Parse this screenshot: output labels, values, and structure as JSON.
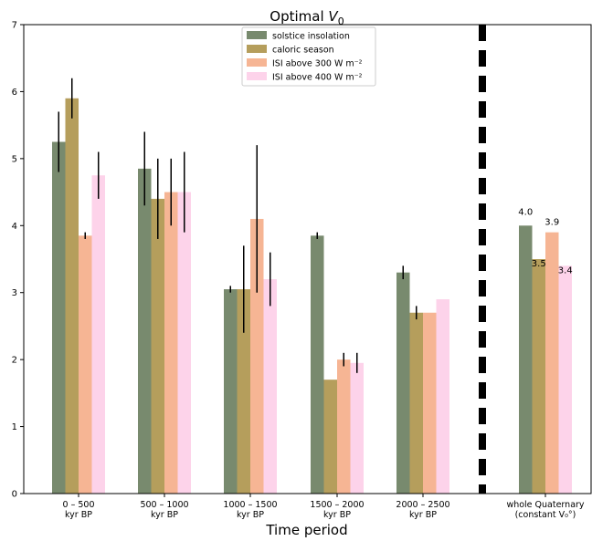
{
  "chart_data": {
    "type": "bar",
    "title_main": "Optimal ",
    "title_sym": "V",
    "title_sub": "0",
    "xlabel": "Time period",
    "ylabel": "",
    "ylim": [
      0,
      7
    ],
    "yticks": [
      "0",
      "1",
      "2",
      "3",
      "4",
      "5",
      "6",
      "7"
    ],
    "grid": false,
    "legend_position": "top-center",
    "groups": [
      {
        "line1": "0 – 500",
        "line2": "kyr BP"
      },
      {
        "line1": "500 – 1000",
        "line2": "kyr BP"
      },
      {
        "line1": "1000 – 1500",
        "line2": "kyr BP"
      },
      {
        "line1": "1500 – 2000",
        "line2": "kyr BP"
      },
      {
        "line1": "2000 – 2500",
        "line2": "kyr BP"
      },
      {
        "line1": "whole Quaternary",
        "line2": "(constant V₀°)"
      }
    ],
    "series": [
      {
        "name": "solstice insolation",
        "color": "#788a6e",
        "values": [
          5.25,
          4.85,
          3.05,
          3.85,
          3.3,
          4.0
        ],
        "err_low": [
          4.8,
          4.3,
          3.0,
          3.8,
          3.2,
          null
        ],
        "err_high": [
          5.7,
          5.4,
          3.1,
          3.9,
          3.4,
          null
        ]
      },
      {
        "name": "caloric season",
        "color": "#b59e5c",
        "values": [
          5.9,
          4.4,
          3.05,
          1.7,
          2.7,
          3.5
        ],
        "err_low": [
          5.6,
          3.8,
          2.4,
          null,
          2.6,
          null
        ],
        "err_high": [
          6.2,
          5.0,
          3.7,
          null,
          2.8,
          null
        ]
      },
      {
        "name": "ISI above 300 W m⁻²",
        "color": "#f6b594",
        "values": [
          3.85,
          4.5,
          4.1,
          2.0,
          2.7,
          3.9
        ],
        "err_low": [
          3.8,
          4.0,
          3.0,
          1.9,
          null,
          null
        ],
        "err_high": [
          3.9,
          5.0,
          5.2,
          2.1,
          null,
          null
        ]
      },
      {
        "name": "ISI above 400 W m⁻²",
        "color": "#fdd3ea",
        "values": [
          4.75,
          4.5,
          3.2,
          1.95,
          2.9,
          3.4
        ],
        "err_low": [
          4.4,
          3.9,
          2.8,
          1.8,
          null,
          null
        ],
        "err_high": [
          5.1,
          5.1,
          3.6,
          2.1,
          null,
          null
        ]
      }
    ],
    "data_labels": [
      "4.0",
      "3.5",
      "3.9",
      "3.4"
    ]
  }
}
